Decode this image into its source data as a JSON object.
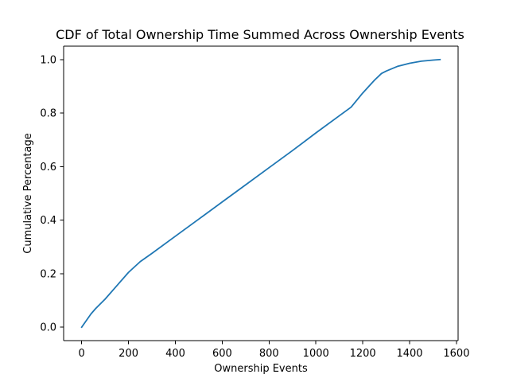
{
  "chart_data": {
    "type": "line",
    "title": "CDF of Total Ownership Time Summed Across Ownership Events",
    "xlabel": "Ownership Events",
    "ylabel": "Cumulative Percentage",
    "xlim": [
      -77,
      1607
    ],
    "ylim": [
      -0.05,
      1.05
    ],
    "x_ticks": [
      0,
      200,
      400,
      600,
      800,
      1000,
      1200,
      1400,
      1600
    ],
    "x_tick_labels": [
      "0",
      "200",
      "400",
      "600",
      "800",
      "1000",
      "1200",
      "1400",
      "1600"
    ],
    "y_ticks": [
      0.0,
      0.2,
      0.4,
      0.6,
      0.8,
      1.0
    ],
    "y_tick_labels": [
      "0.0",
      "0.2",
      "0.4",
      "0.6",
      "0.8",
      "1.0"
    ],
    "grid": false,
    "series": [
      {
        "color": "#1f77b4",
        "x": [
          0,
          20,
          40,
          60,
          100,
          150,
          200,
          250,
          300,
          400,
          500,
          600,
          700,
          800,
          900,
          1000,
          1100,
          1150,
          1200,
          1250,
          1280,
          1300,
          1350,
          1400,
          1450,
          1500,
          1530
        ],
        "y": [
          0.0,
          0.025,
          0.05,
          0.07,
          0.105,
          0.155,
          0.205,
          0.245,
          0.276,
          0.34,
          0.404,
          0.468,
          0.532,
          0.596,
          0.66,
          0.726,
          0.79,
          0.822,
          0.875,
          0.923,
          0.948,
          0.957,
          0.975,
          0.986,
          0.994,
          0.998,
          1.0
        ]
      }
    ]
  }
}
